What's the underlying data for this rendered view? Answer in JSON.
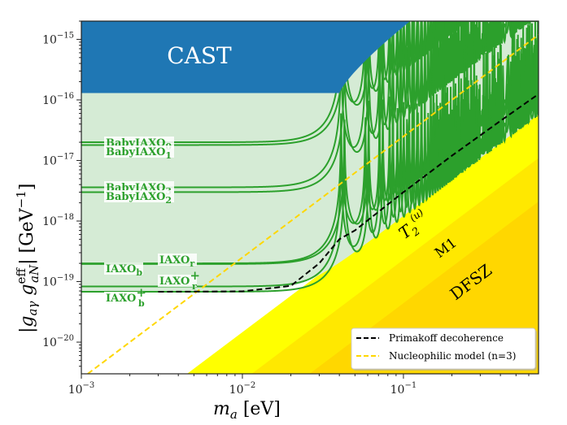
{
  "chart_data": {
    "type": "line",
    "xscale": "log",
    "yscale": "log",
    "xlim": [
      0.001,
      0.69
    ],
    "ylim": [
      3e-21,
      2e-15
    ],
    "xlabel": {
      "main": "m",
      "sub": "a",
      "unit": " [eV]"
    },
    "ylabel": {
      "text": "|g",
      "sub1": "aγ",
      "mid": " g",
      "sup2": "eff",
      "sub2": "aN",
      "unit": "| [GeV",
      "unitexp": "−1",
      "close": "]"
    },
    "xticks": [
      {
        "value": 0.001,
        "base": "10",
        "exp": "−3"
      },
      {
        "value": 0.01,
        "base": "10",
        "exp": "−2"
      },
      {
        "value": 0.1,
        "base": "10",
        "exp": "−1"
      }
    ],
    "yticks": [
      {
        "value": 1e-15,
        "base": "10",
        "exp": "−15"
      },
      {
        "value": 1e-16,
        "base": "10",
        "exp": "−16"
      },
      {
        "value": 1e-17,
        "base": "10",
        "exp": "−17"
      },
      {
        "value": 1e-18,
        "base": "10",
        "exp": "−18"
      },
      {
        "value": 1e-19,
        "base": "10",
        "exp": "−19"
      },
      {
        "value": 1e-20,
        "base": "10",
        "exp": "−20"
      }
    ],
    "regions": [
      {
        "name": "CAST",
        "label": "CAST",
        "color": "#1f77b4",
        "flat_limit": 1.3e-16,
        "rise_start": 0.04,
        "rise_end": 0.11
      },
      {
        "name": "KSVZ-band",
        "label": "",
        "color": "#ffff00",
        "coeff_m2": 1.46e-16
      },
      {
        "name": "M1",
        "label": "M1",
        "color": "#ffe800",
        "coeff_m2": 2.3e-17
      },
      {
        "name": "DFSZ",
        "label": "DFSZ",
        "color": "#ffd700",
        "coeff_m2": 4.4e-18
      }
    ],
    "theory_label": {
      "base": "T",
      "sub": "2",
      "sup": "(u)"
    },
    "experiments": [
      {
        "name": "BabyIAXO",
        "sub": "0",
        "g0": 2e-17,
        "m_res": 0.041
      },
      {
        "name": "BabyIAXO",
        "sub": "1",
        "g0": 1.8e-17,
        "m_res": 0.043
      },
      {
        "name": "BabyIAXO",
        "sub": "3",
        "g0": 3.6e-18,
        "m_res": 0.041
      },
      {
        "name": "BabyIAXO",
        "sub": "2",
        "g0": 3e-18,
        "m_res": 0.043
      },
      {
        "name": "IAXO",
        "sub": "r",
        "sup": "",
        "g0": 2e-19,
        "m_res": 0.041
      },
      {
        "name": "IAXO",
        "sub": "b",
        "sup": "",
        "g0": 1.95e-19,
        "m_res": 0.043
      },
      {
        "name": "IAXO",
        "sub": "r",
        "sup": "+",
        "g0": 8.3e-20,
        "m_res": 0.041
      },
      {
        "name": "IAXO",
        "sub": "b",
        "sup": "+",
        "g0": 6.8e-20,
        "m_res": 0.043
      }
    ],
    "series": [
      {
        "name": "Primakoff decoherence",
        "color": "#000000",
        "style": "dashed",
        "x": [
          0.003,
          0.01,
          0.02,
          0.03,
          0.04,
          0.05,
          0.1,
          0.2,
          0.4,
          0.69
        ],
        "y": [
          6.8e-20,
          6.9e-20,
          8.5e-20,
          2e-19,
          5e-19,
          7e-19,
          3e-18,
          1.2e-17,
          4.5e-17,
          1.25e-16
        ]
      },
      {
        "name": "Nucleophilic model (n=3)",
        "color": "#ffd700",
        "style": "dashed",
        "coeff_m2": 2.5e-15
      }
    ],
    "legend": {
      "placement": "lower-right"
    }
  }
}
